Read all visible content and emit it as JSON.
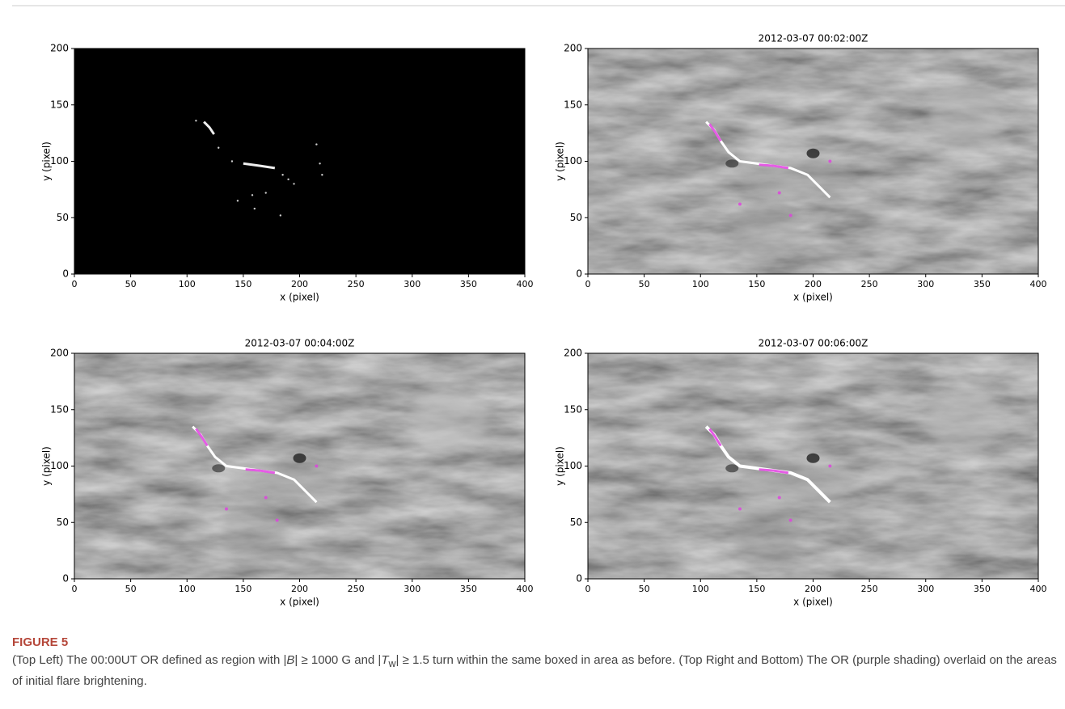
{
  "chart_data": [
    {
      "type": "image",
      "x_label": "x (pixel)",
      "y_label": "y (pixel)",
      "xlim": [
        0,
        400
      ],
      "ylim": [
        0,
        200
      ],
      "xticks": [
        0,
        50,
        100,
        150,
        200,
        250,
        300,
        350,
        400
      ],
      "yticks": [
        0,
        50,
        100,
        150,
        200
      ]
    },
    {
      "type": "image",
      "title": "2012-03-07 00:02:00Z",
      "x_label": "x (pixel)",
      "y_label": "y (pixel)",
      "xlim": [
        0,
        400
      ],
      "ylim": [
        0,
        200
      ],
      "xticks": [
        0,
        50,
        100,
        150,
        200,
        250,
        300,
        350,
        400
      ],
      "yticks": [
        0,
        50,
        100,
        150,
        200
      ]
    },
    {
      "type": "image",
      "title": "2012-03-07 00:04:00Z",
      "x_label": "x (pixel)",
      "y_label": "y (pixel)",
      "xlim": [
        0,
        400
      ],
      "ylim": [
        0,
        200
      ],
      "xticks": [
        0,
        50,
        100,
        150,
        200,
        250,
        300,
        350,
        400
      ],
      "yticks": [
        0,
        50,
        100,
        150,
        200
      ]
    },
    {
      "type": "image",
      "title": "2012-03-07 00:06:00Z",
      "x_label": "x (pixel)",
      "y_label": "y (pixel)",
      "xlim": [
        0,
        400
      ],
      "ylim": [
        0,
        200
      ],
      "xticks": [
        0,
        50,
        100,
        150,
        200,
        250,
        300,
        350,
        400
      ],
      "yticks": [
        0,
        50,
        100,
        150,
        200
      ]
    }
  ],
  "caption": {
    "label": "FIGURE 5",
    "runs": [
      "(Top Left) The 00:00UT OR defined as region with |",
      "B",
      "| ≥ 1000 G and |",
      "T",
      "w",
      "| ≥ 1.5 turn within the same boxed in area as before. (Top Right and Bottom) The OR (purple shading) overlaid on the areas of initial flare brightening."
    ]
  }
}
